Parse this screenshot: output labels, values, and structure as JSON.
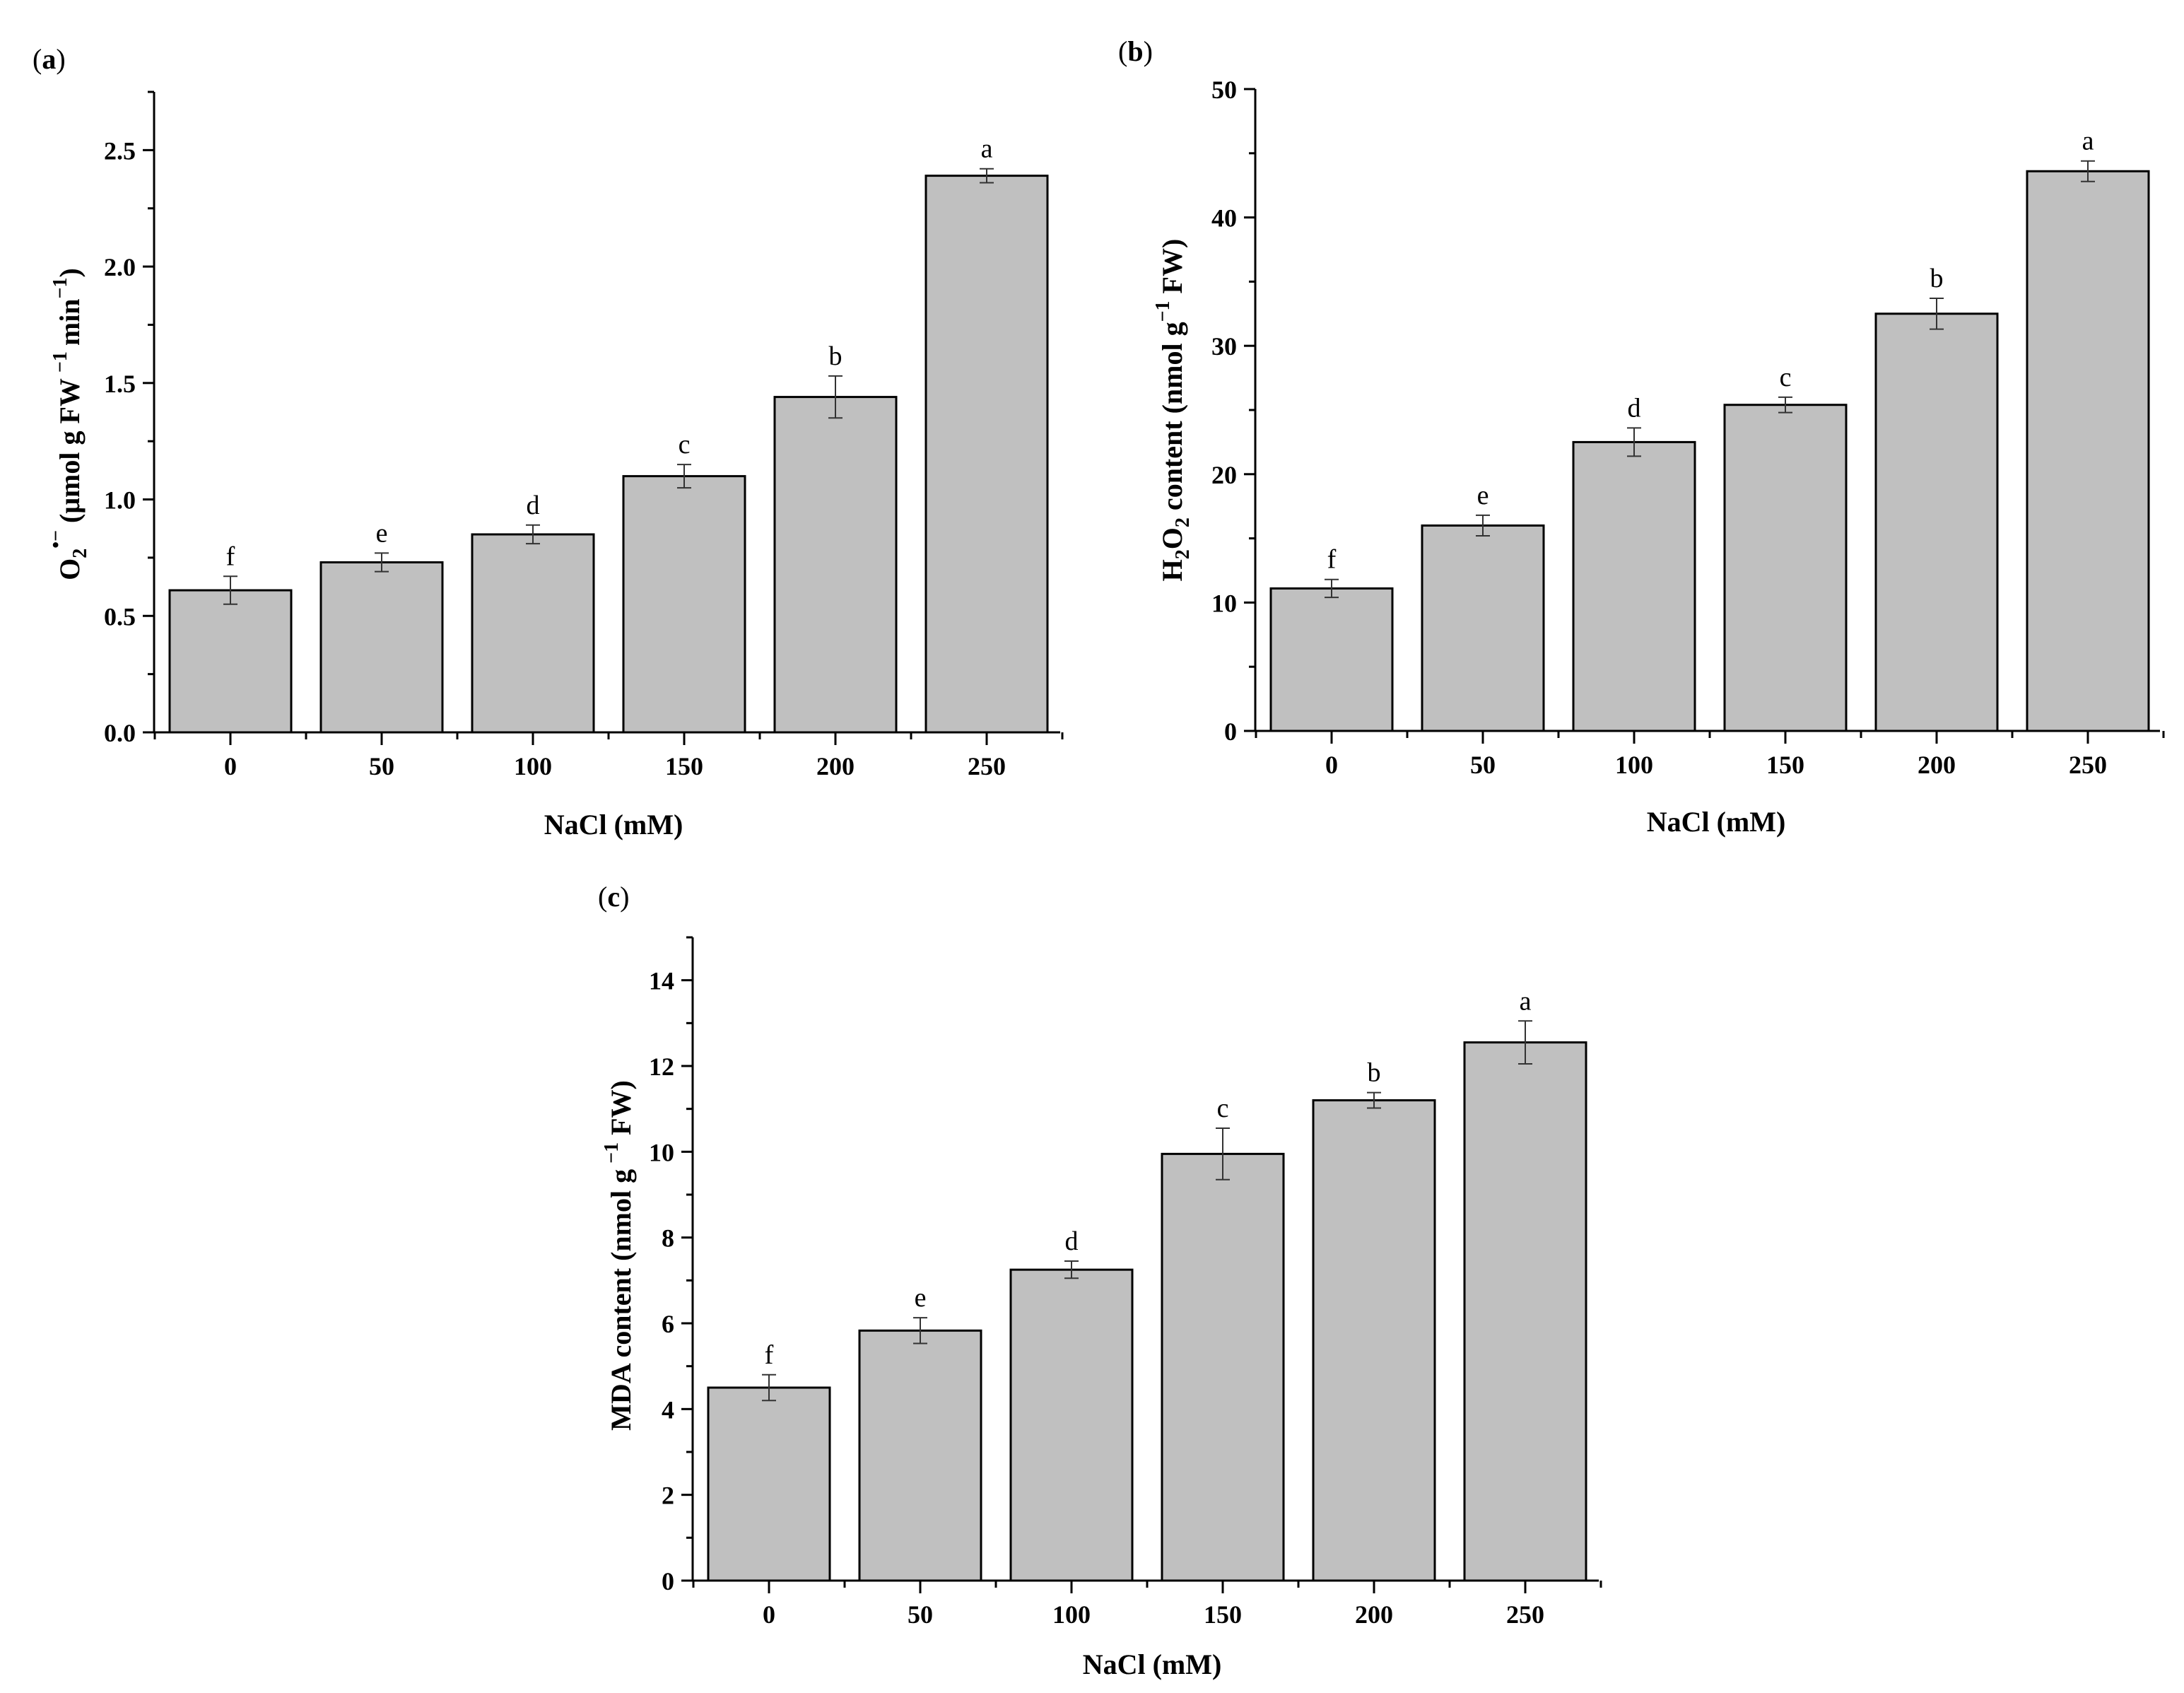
{
  "colors": {
    "bar_fill": "#c0c0c0",
    "axis": "#000000",
    "background": "#ffffff"
  },
  "chart_data": [
    {
      "id": "a",
      "panel_label": "a",
      "type": "bar",
      "categories": [
        "0",
        "50",
        "100",
        "150",
        "200",
        "250"
      ],
      "values": [
        0.61,
        0.73,
        0.85,
        1.1,
        1.44,
        2.39
      ],
      "errors": [
        0.06,
        0.04,
        0.04,
        0.05,
        0.09,
        0.03
      ],
      "letters": [
        "f",
        "e",
        "d",
        "c",
        "b",
        "a"
      ],
      "yticks": [
        0.0,
        0.5,
        1.0,
        1.5,
        2.0,
        2.5
      ],
      "ytick_labels": [
        "0.0",
        "0.5",
        "1.0",
        "1.5",
        "2.0",
        "2.5"
      ],
      "ylim": [
        0,
        2.75
      ],
      "xlabel": "NaCl (mM)",
      "ylabel_parts": {
        "o": "O",
        "sub": "2",
        "sup": "•−",
        "unit_a": "(μmol g FW",
        "sup2": "−1",
        "unit_b": "min",
        "sup3": "−1",
        "close": ")"
      }
    },
    {
      "id": "b",
      "panel_label": "b",
      "type": "bar",
      "categories": [
        "0",
        "50",
        "100",
        "150",
        "200",
        "250"
      ],
      "values": [
        11.1,
        16.0,
        22.5,
        25.4,
        32.5,
        43.6
      ],
      "errors": [
        0.7,
        0.8,
        1.1,
        0.6,
        1.2,
        0.8
      ],
      "letters": [
        "f",
        "e",
        "d",
        "c",
        "b",
        "a"
      ],
      "yticks": [
        0,
        10,
        20,
        30,
        40,
        50
      ],
      "ytick_labels": [
        "0",
        "10",
        "20",
        "30",
        "40",
        "50"
      ],
      "ylim": [
        0,
        50
      ],
      "xlabel": "NaCl (mM)",
      "ylabel_parts": {
        "h": "H",
        "sub1": "2",
        "o": "O",
        "sub2": "2",
        "unit_a": "content (nmol g",
        "sup": "−1",
        "unit_b": "FW)"
      }
    },
    {
      "id": "c",
      "panel_label": "c",
      "type": "bar",
      "categories": [
        "0",
        "50",
        "100",
        "150",
        "200",
        "250"
      ],
      "values": [
        4.5,
        5.83,
        7.25,
        9.95,
        11.2,
        12.55
      ],
      "errors": [
        0.3,
        0.3,
        0.2,
        0.6,
        0.18,
        0.5
      ],
      "letters": [
        "f",
        "e",
        "d",
        "c",
        "b",
        "a"
      ],
      "yticks": [
        0,
        2,
        4,
        6,
        8,
        10,
        12,
        14
      ],
      "ytick_labels": [
        "0",
        "2",
        "4",
        "6",
        "8",
        "10",
        "12",
        "14"
      ],
      "ylim": [
        0,
        15
      ],
      "xlabel": "NaCl (mM)",
      "ylabel_parts": {
        "unit_a": "MDA content (nmol g",
        "sup": "−1",
        "unit_b": "FW)"
      }
    }
  ]
}
